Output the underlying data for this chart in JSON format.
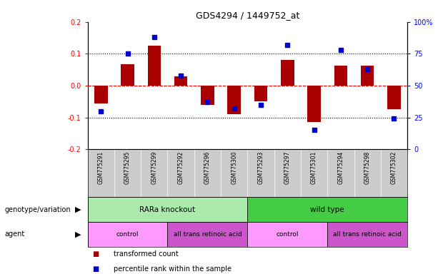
{
  "title": "GDS4294 / 1449752_at",
  "samples": [
    "GSM775291",
    "GSM775295",
    "GSM775299",
    "GSM775292",
    "GSM775296",
    "GSM775300",
    "GSM775293",
    "GSM775297",
    "GSM775301",
    "GSM775294",
    "GSM775298",
    "GSM775302"
  ],
  "red_values": [
    -0.055,
    0.068,
    0.125,
    0.03,
    -0.06,
    -0.09,
    -0.05,
    0.08,
    -0.115,
    0.062,
    0.062,
    -0.075
  ],
  "blue_pct": [
    30,
    75,
    88,
    58,
    37,
    32,
    35,
    82,
    15,
    78,
    63,
    24
  ],
  "ylim_left": [
    -0.2,
    0.2
  ],
  "ylim_right": [
    0,
    100
  ],
  "yticks_left": [
    -0.2,
    -0.1,
    0.0,
    0.1,
    0.2
  ],
  "yticks_right": [
    0,
    25,
    50,
    75,
    100
  ],
  "ytick_right_labels": [
    "0",
    "25",
    "50",
    "75",
    "100%"
  ],
  "hlines_dotted": [
    0.1,
    0.0,
    -0.1
  ],
  "genotype_groups": [
    {
      "label": "RARa knockout",
      "start": 0,
      "end": 6,
      "color": "#AAEAAA"
    },
    {
      "label": "wild type",
      "start": 6,
      "end": 12,
      "color": "#44CC44"
    }
  ],
  "agent_groups": [
    {
      "label": "control",
      "start": 0,
      "end": 3,
      "color": "#FF99FF"
    },
    {
      "label": "all trans retinoic acid",
      "start": 3,
      "end": 6,
      "color": "#CC55CC"
    },
    {
      "label": "control",
      "start": 6,
      "end": 9,
      "color": "#FF99FF"
    },
    {
      "label": "all trans retinoic acid",
      "start": 9,
      "end": 12,
      "color": "#CC55CC"
    }
  ],
  "genotype_label": "genotype/variation",
  "agent_label": "agent",
  "legend_red": "transformed count",
  "legend_blue": "percentile rank within the sample",
  "red_color": "#AA0000",
  "blue_color": "#0000CC",
  "bar_width": 0.5,
  "sample_bg": "#CCCCCC"
}
